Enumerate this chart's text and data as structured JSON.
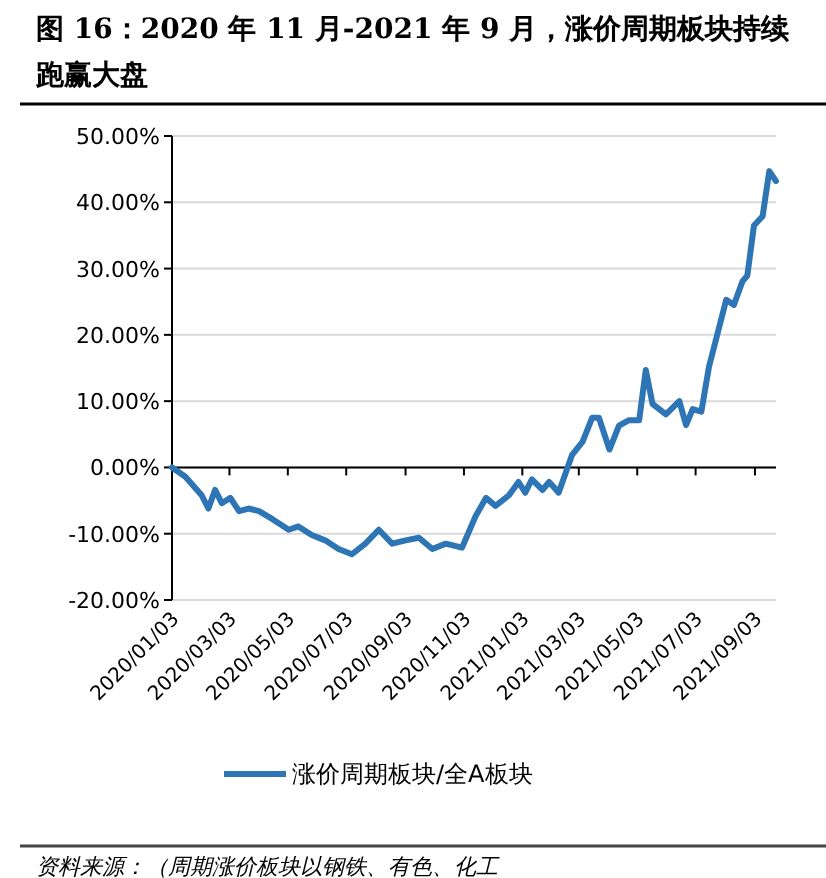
{
  "chart_data": {
    "type": "line",
    "title": "图 16：2020 年 11 月-2021 年 9 月，涨价周期板块持续跑赢大盘",
    "series": [
      {
        "name": "涨价周期板块/全A板块",
        "color": "#2e75b6",
        "x": [
          "2020-01-03",
          "2020-01-17",
          "2020-02-03",
          "2020-02-10",
          "2020-02-17",
          "2020-02-24",
          "2020-03-04",
          "2020-03-13",
          "2020-03-23",
          "2020-04-03",
          "2020-04-17",
          "2020-05-04",
          "2020-05-14",
          "2020-05-28",
          "2020-06-11",
          "2020-06-25",
          "2020-07-09",
          "2020-07-23",
          "2020-08-06",
          "2020-08-20",
          "2020-09-03",
          "2020-09-17",
          "2020-10-01",
          "2020-10-15",
          "2020-11-01",
          "2020-11-15",
          "2020-11-26",
          "2020-12-06",
          "2020-12-20",
          "2020-12-30",
          "2021-01-06",
          "2021-01-13",
          "2021-01-24",
          "2021-01-31",
          "2021-02-10",
          "2021-02-24",
          "2021-03-07",
          "2021-03-17",
          "2021-03-24",
          "2021-04-04",
          "2021-04-14",
          "2021-04-24",
          "2021-05-05",
          "2021-05-12",
          "2021-05-19",
          "2021-06-02",
          "2021-06-16",
          "2021-06-23",
          "2021-06-30",
          "2021-07-09",
          "2021-07-17",
          "2021-08-04",
          "2021-08-12",
          "2021-08-21",
          "2021-08-26",
          "2021-09-02",
          "2021-09-11",
          "2021-09-18",
          "2021-09-25"
        ],
        "values": [
          0,
          -1.4,
          -4.2,
          -6.2,
          -3.4,
          -5.4,
          -4.6,
          -6.6,
          -6.2,
          -6.6,
          -7.8,
          -9.4,
          -8.9,
          -10.2,
          -11,
          -12.3,
          -13.1,
          -11.5,
          -9.4,
          -11.5,
          -11,
          -10.6,
          -12.3,
          -11.5,
          -12.1,
          -7.4,
          -4.6,
          -5.8,
          -4.2,
          -2.2,
          -3.8,
          -1.8,
          -3.4,
          -2.2,
          -3.8,
          1.9,
          3.9,
          7.5,
          7.5,
          2.7,
          6.3,
          7.1,
          7.1,
          14.7,
          9.6,
          8,
          10,
          6.4,
          8.8,
          8.4,
          15.2,
          25.3,
          24.5,
          28.1,
          28.9,
          36.5,
          37.9,
          44.7,
          43.2
        ]
      }
    ],
    "xlim": [
      "2020-01-03",
      "2021-09-25"
    ],
    "xticks": [
      {
        "value": "2020-01-03",
        "label": "2020/01/03"
      },
      {
        "value": "2020-03-03",
        "label": "2020/03/03"
      },
      {
        "value": "2020-05-03",
        "label": "2020/05/03"
      },
      {
        "value": "2020-07-03",
        "label": "2020/07/03"
      },
      {
        "value": "2020-09-03",
        "label": "2020/09/03"
      },
      {
        "value": "2020-11-03",
        "label": "2020/11/03"
      },
      {
        "value": "2021-01-03",
        "label": "2021/01/03"
      },
      {
        "value": "2021-03-03",
        "label": "2021/03/03"
      },
      {
        "value": "2021-05-03",
        "label": "2021/05/03"
      },
      {
        "value": "2021-07-03",
        "label": "2021/07/03"
      },
      {
        "value": "2021-09-03",
        "label": "2021/09/03"
      }
    ],
    "ylim": [
      -20,
      50
    ],
    "yticks": [
      {
        "value": -20,
        "label": "-20.00%"
      },
      {
        "value": -10,
        "label": "-10.00%"
      },
      {
        "value": 0,
        "label": "0.00%"
      },
      {
        "value": 10,
        "label": "10.00%"
      },
      {
        "value": 20,
        "label": "20.00%"
      },
      {
        "value": 30,
        "label": "30.00%"
      },
      {
        "value": 40,
        "label": "40.00%"
      },
      {
        "value": 50,
        "label": "50.00%"
      }
    ],
    "grid": "y",
    "legend": "bottom",
    "marker": "none",
    "line_style": "solid",
    "annotations": [
      "资料来源：（周期涨价板块以钢铁、有色、化工"
    ]
  }
}
